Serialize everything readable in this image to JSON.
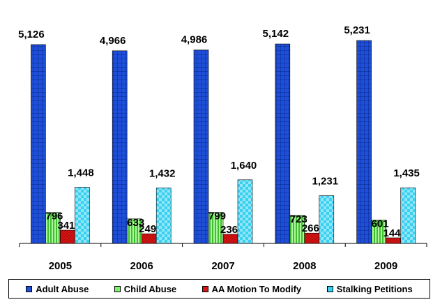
{
  "chart_data": {
    "type": "bar",
    "categories": [
      "2005",
      "2006",
      "2007",
      "2008",
      "2009"
    ],
    "series": [
      {
        "name": "Adult Abuse",
        "values": [
          5126,
          4966,
          4986,
          5142,
          5231
        ],
        "labels": [
          "5,126",
          "4,966",
          "4,986",
          "5,142",
          "5,231"
        ],
        "color": "#1f4fd8",
        "pattern": "grid"
      },
      {
        "name": "Child Abuse",
        "values": [
          796,
          633,
          799,
          723,
          601
        ],
        "labels": [
          "796",
          "633",
          "799",
          "723",
          "601"
        ],
        "color": "#7cf26a",
        "pattern": "vstripe"
      },
      {
        "name": "AA Motion To Modify",
        "values": [
          341,
          249,
          236,
          266,
          144
        ],
        "labels": [
          "341",
          "249",
          "236",
          "266",
          "144"
        ],
        "color": "#d81414",
        "pattern": "solid"
      },
      {
        "name": "Stalking Petitions",
        "values": [
          1448,
          1432,
          1640,
          1231,
          1435
        ],
        "labels": [
          "1,448",
          "1,432",
          "1,640",
          "1,231",
          "1,435"
        ],
        "color": "#3ad0f0",
        "pattern": "check"
      }
    ],
    "ylim": [
      0,
      5700
    ],
    "grid": false,
    "legend_position": "bottom"
  }
}
